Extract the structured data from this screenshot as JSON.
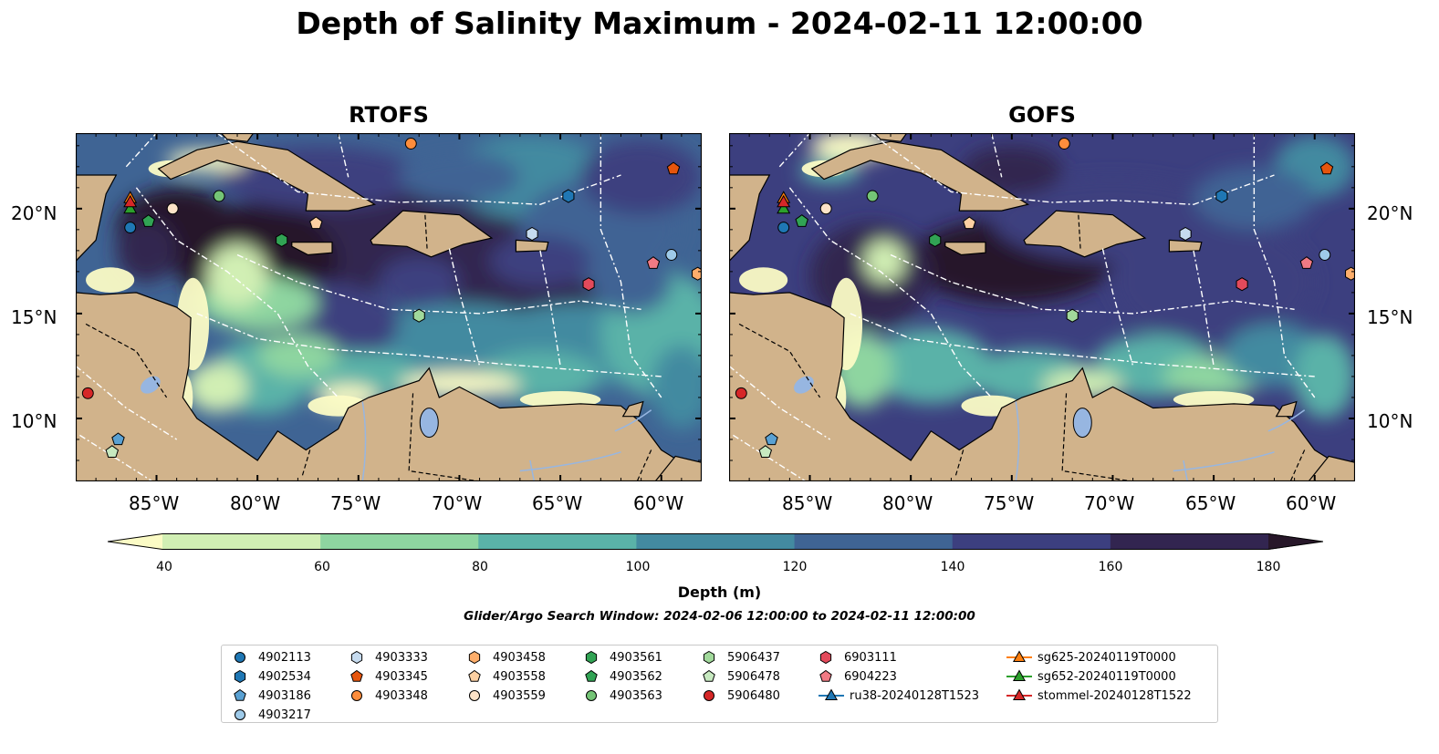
{
  "title": "Depth of Salinity Maximum - 2024-02-11 12:00:00",
  "panels": [
    {
      "title": "RTOFS",
      "variant": "rtofs"
    },
    {
      "title": "GOFS",
      "variant": "gofs"
    }
  ],
  "lon_ticks": [
    "85°W",
    "80°W",
    "75°W",
    "70°W",
    "65°W",
    "60°W"
  ],
  "lat_ticks": [
    "20°N",
    "15°N",
    "10°N"
  ],
  "extent": {
    "lon": [
      -89,
      -58
    ],
    "lat": [
      7,
      23.6
    ]
  },
  "colorbar": {
    "label": "Depth (m)",
    "ticks": [
      "40",
      "60",
      "80",
      "100",
      "120",
      "140",
      "160",
      "180"
    ],
    "colors": [
      "#fbfbc5",
      "#d1efb4",
      "#8ed5a0",
      "#5ab2a8",
      "#438aa0",
      "#3f6494",
      "#3c3f7f",
      "#322550",
      "#271729"
    ]
  },
  "search_window": "Glider/Argo Search Window: 2024-02-06 12:00:00 to 2024-02-11 12:00:00",
  "land_color": "#d1b38b",
  "legend": [
    {
      "label": "4902113",
      "marker": "circle",
      "color": "#1f77b4"
    },
    {
      "label": "4902534",
      "marker": "hexagon",
      "color": "#1f77b4"
    },
    {
      "label": "4903186",
      "marker": "pentagon",
      "color": "#5aa1d3"
    },
    {
      "label": "4903217",
      "marker": "circle",
      "color": "#9ecae9"
    },
    {
      "label": "4903333",
      "marker": "hexagon",
      "color": "#c6dbef"
    },
    {
      "label": "4903345",
      "marker": "pentagon",
      "color": "#e6550d"
    },
    {
      "label": "4903348",
      "marker": "circle",
      "color": "#fd8d3c"
    },
    {
      "label": "4903458",
      "marker": "hexagon",
      "color": "#fdae6b"
    },
    {
      "label": "4903558",
      "marker": "pentagon",
      "color": "#fdd0a2"
    },
    {
      "label": "4903559",
      "marker": "circle",
      "color": "#fde3c8"
    },
    {
      "label": "4903561",
      "marker": "hexagon",
      "color": "#31a354"
    },
    {
      "label": "4903562",
      "marker": "pentagon",
      "color": "#31a354"
    },
    {
      "label": "4903563",
      "marker": "circle",
      "color": "#74c476"
    },
    {
      "label": "5906437",
      "marker": "hexagon",
      "color": "#a1d99b"
    },
    {
      "label": "5906478",
      "marker": "pentagon",
      "color": "#c7e9c0"
    },
    {
      "label": "5906480",
      "marker": "circle",
      "color": "#d62728"
    },
    {
      "label": "6903111",
      "marker": "hexagon",
      "color": "#e34a5b"
    },
    {
      "label": "6904223",
      "marker": "pentagon",
      "color": "#f07a84"
    },
    {
      "label": "ru38-20240128T1523",
      "marker": "triangle-line",
      "color": "#1f77b4"
    },
    {
      "label": "sg625-20240119T0000",
      "marker": "triangle-line",
      "color": "#ff7f0e"
    },
    {
      "label": "sg652-20240119T0000",
      "marker": "triangle-line",
      "color": "#2ca02c"
    },
    {
      "label": "stommel-20240128T1522",
      "marker": "triangle-line",
      "color": "#d62728"
    }
  ],
  "platforms": [
    {
      "id": "4902113",
      "lon": -86.3,
      "lat": 19.1
    },
    {
      "id": "4902534",
      "lon": -64.6,
      "lat": 20.6
    },
    {
      "id": "4903186",
      "lon": -86.9,
      "lat": 9.0
    },
    {
      "id": "4903217",
      "lon": -59.5,
      "lat": 17.8
    },
    {
      "id": "4903333",
      "lon": -66.4,
      "lat": 18.8
    },
    {
      "id": "4903345",
      "lon": -59.4,
      "lat": 21.9
    },
    {
      "id": "4903348",
      "lon": -72.4,
      "lat": 23.1
    },
    {
      "id": "4903458",
      "lon": -58.2,
      "lat": 16.9
    },
    {
      "id": "4903558",
      "lon": -77.1,
      "lat": 19.3
    },
    {
      "id": "4903559",
      "lon": -84.2,
      "lat": 20.0
    },
    {
      "id": "4903561",
      "lon": -78.8,
      "lat": 18.5
    },
    {
      "id": "4903562",
      "lon": -85.4,
      "lat": 19.4
    },
    {
      "id": "4903563",
      "lon": -81.9,
      "lat": 20.6
    },
    {
      "id": "5906437",
      "lon": -72.0,
      "lat": 14.9
    },
    {
      "id": "5906478",
      "lon": -87.2,
      "lat": 8.4
    },
    {
      "id": "5906480",
      "lon": -88.4,
      "lat": 11.2
    },
    {
      "id": "6903111",
      "lon": -63.6,
      "lat": 16.4
    },
    {
      "id": "6904223",
      "lon": -60.4,
      "lat": 17.4
    },
    {
      "id": "sg625-20240119T0000",
      "lon": -86.3,
      "lat": 20.5
    },
    {
      "id": "sg652-20240119T0000",
      "lon": -86.3,
      "lat": 20.0
    },
    {
      "id": "stommel-20240128T1522",
      "lon": -86.3,
      "lat": 20.3
    }
  ]
}
